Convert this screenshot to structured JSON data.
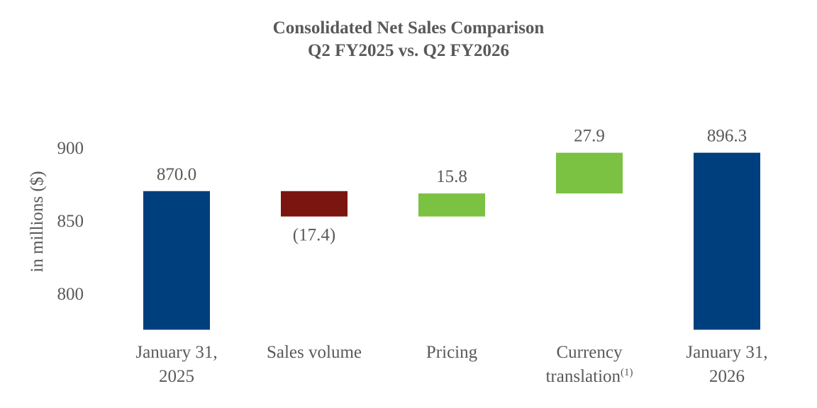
{
  "chart_data": {
    "type": "waterfall",
    "title": "Consolidated Net Sales Comparison",
    "subtitle": "Q2 FY2025 vs. Q2 FY2026",
    "ylabel": "in millions ($)",
    "ylim": [
      775,
      915
    ],
    "yticks": [
      800,
      850,
      900
    ],
    "steps": [
      {
        "category": "January 31,\n2025",
        "kind": "total",
        "start": 775,
        "end": 870.0,
        "label": "870.0",
        "label_pos": "above",
        "color": "#003f7d"
      },
      {
        "category": "Sales volume",
        "kind": "delta",
        "start": 870.0,
        "end": 852.6,
        "label": "(17.4)",
        "label_pos": "below",
        "color": "#7b1510"
      },
      {
        "category": "Pricing",
        "kind": "delta",
        "start": 852.6,
        "end": 868.4,
        "label": "15.8",
        "label_pos": "above",
        "color": "#7bc142"
      },
      {
        "category": "Currency\ntranslation",
        "superscript": "(1)",
        "kind": "delta",
        "start": 868.4,
        "end": 896.3,
        "label": "27.9",
        "label_pos": "above",
        "color": "#7bc142"
      },
      {
        "category": "January 31,\n2026",
        "kind": "total",
        "start": 775,
        "end": 896.3,
        "label": "896.3",
        "label_pos": "above",
        "color": "#003f7d"
      }
    ]
  }
}
